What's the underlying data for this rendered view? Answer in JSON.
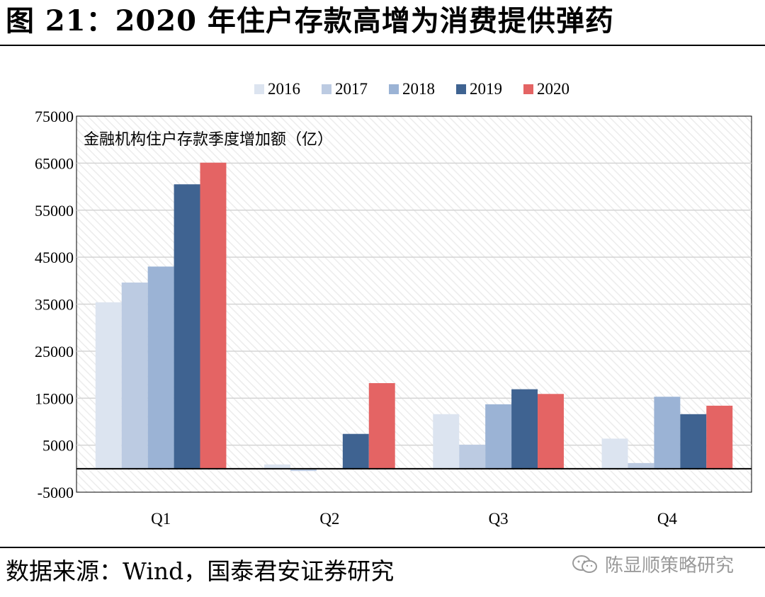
{
  "figure": {
    "title": "图 21：2020 年住户存款高增为消费提供弹药",
    "source": "数据来源：Wind，国泰君安证券研究",
    "watermark": "陈显顺策略研究"
  },
  "colors": {
    "2016": "#dce4f0",
    "2017": "#bccbe2",
    "2018": "#9bb3d5",
    "2019": "#3f6391",
    "2020": "#e46464",
    "grid": "#d4d4d4",
    "zero_line": "#000000"
  },
  "icons": {
    "watermark": "wechat-icon"
  },
  "chart_data": {
    "type": "bar",
    "title": "金融机构住户存款季度增加额（亿）",
    "categories": [
      "Q1",
      "Q2",
      "Q3",
      "Q4"
    ],
    "series": [
      {
        "name": "2016",
        "values": [
          35400,
          900,
          11600,
          6400
        ]
      },
      {
        "name": "2017",
        "values": [
          39600,
          -500,
          5100,
          1200
        ]
      },
      {
        "name": "2018",
        "values": [
          43000,
          0,
          13700,
          15300
        ]
      },
      {
        "name": "2019",
        "values": [
          60500,
          7400,
          16900,
          11600
        ]
      },
      {
        "name": "2020",
        "values": [
          65100,
          18200,
          15900,
          13400
        ]
      }
    ],
    "ylim": [
      -5000,
      75000
    ],
    "yticks": [
      -5000,
      5000,
      15000,
      25000,
      35000,
      45000,
      55000,
      65000,
      75000
    ],
    "legend": "top-center",
    "grid": true,
    "xlabel": "",
    "ylabel": ""
  }
}
